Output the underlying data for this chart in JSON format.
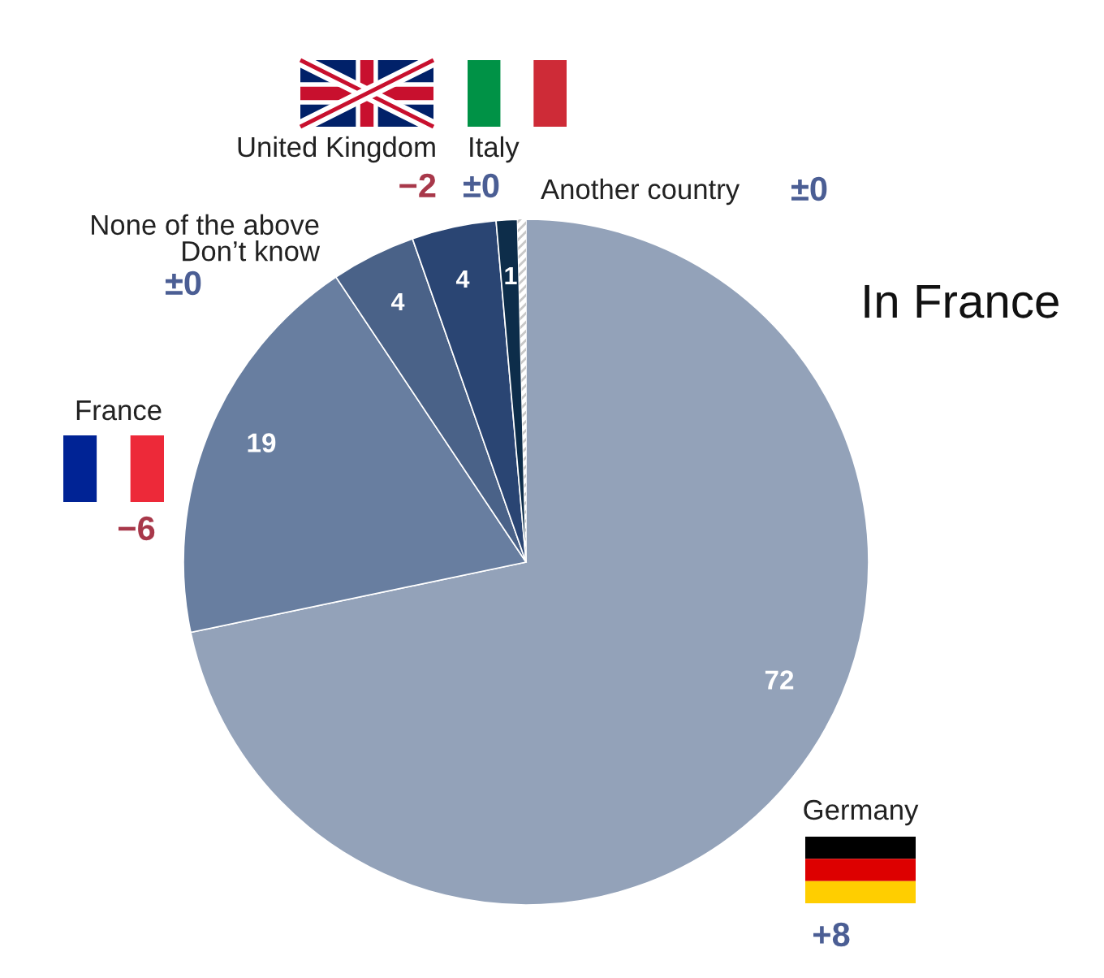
{
  "chart_data": {
    "type": "pie",
    "title": "In France",
    "categories": [
      "Germany",
      "France",
      "None of the above\nDon’t know",
      "United Kingdom",
      "Italy",
      "Another country"
    ],
    "values": [
      72,
      19,
      4,
      4,
      1,
      0.4
    ],
    "colors": [
      "#93a2b9",
      "#687ea0",
      "#4a6288",
      "#2a4573",
      "#0d2d4a",
      "#c8c8c8"
    ],
    "value_labels": [
      "72",
      "19",
      "4",
      "4",
      "1",
      null
    ],
    "annotations": [
      "+8",
      "−6",
      "±0",
      "−2",
      "±0",
      "±0"
    ]
  }
}
